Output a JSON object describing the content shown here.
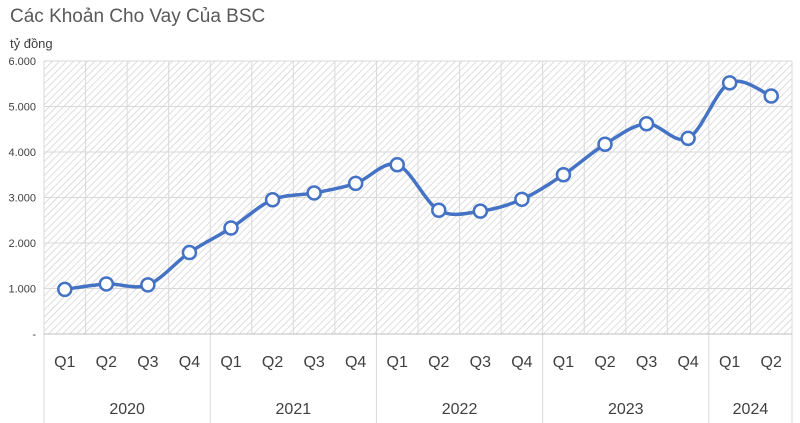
{
  "chart_data": {
    "type": "line",
    "title": "Các Khoản Cho Vay Của BSC",
    "ylabel": "tỷ đồng",
    "xlabel": "",
    "ylim": [
      0,
      6000
    ],
    "yticks": [
      "-",
      "1.000",
      "2.000",
      "3.000",
      "4.000",
      "5.000",
      "6.000"
    ],
    "ytick_values": [
      0,
      1000,
      2000,
      3000,
      4000,
      5000,
      6000
    ],
    "years": [
      {
        "label": "2020",
        "quarters": [
          "Q1",
          "Q2",
          "Q3",
          "Q4"
        ]
      },
      {
        "label": "2021",
        "quarters": [
          "Q1",
          "Q2",
          "Q3",
          "Q4"
        ]
      },
      {
        "label": "2022",
        "quarters": [
          "Q1",
          "Q2",
          "Q3",
          "Q4"
        ]
      },
      {
        "label": "2023",
        "quarters": [
          "Q1",
          "Q2",
          "Q3",
          "Q4"
        ]
      },
      {
        "label": "2024",
        "quarters": [
          "Q1",
          "Q2"
        ]
      }
    ],
    "values": [
      980,
      1100,
      1080,
      1790,
      2330,
      2950,
      3100,
      3310,
      3720,
      2720,
      2700,
      2960,
      3500,
      4170,
      4620,
      4300,
      5520,
      5230
    ],
    "grid": true,
    "legend": "none",
    "line_color": "#4472C4",
    "marker_fill": "#ffffff"
  }
}
